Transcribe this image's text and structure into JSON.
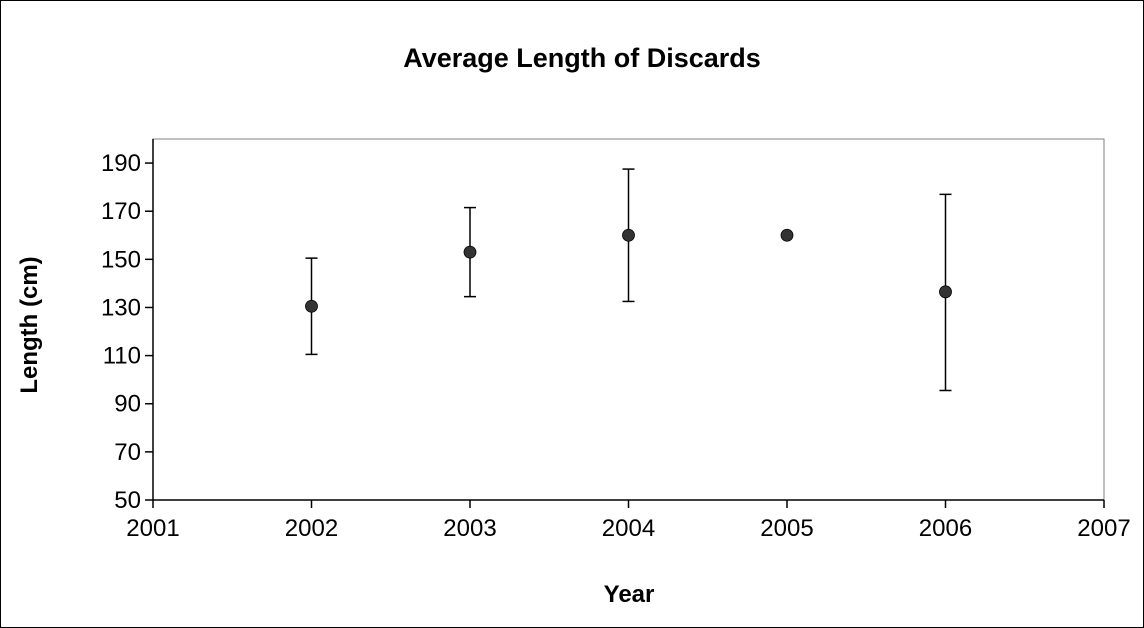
{
  "chart_data": {
    "type": "scatter",
    "title": "Average Length of Discards",
    "xlabel": "Year",
    "ylabel": "Length (cm)",
    "xlim": [
      2001,
      2007
    ],
    "ylim": [
      50,
      200
    ],
    "x_ticks": [
      "2001",
      "2002",
      "2003",
      "2004",
      "2005",
      "2006",
      "2007"
    ],
    "y_ticks": [
      "50",
      "70",
      "90",
      "110",
      "130",
      "150",
      "170",
      "190"
    ],
    "grid": false,
    "legend": "none",
    "marker_color": "#333333",
    "points": [
      {
        "x": 2002,
        "y": 130.5,
        "err_low": 110.5,
        "err_high": 150.5
      },
      {
        "x": 2003,
        "y": 153,
        "err_low": 134.5,
        "err_high": 171.5
      },
      {
        "x": 2004,
        "y": 160,
        "err_low": 132.5,
        "err_high": 187.5
      },
      {
        "x": 2005,
        "y": 160
      },
      {
        "x": 2006,
        "y": 136.5,
        "err_low": 95.5,
        "err_high": 177
      }
    ]
  }
}
